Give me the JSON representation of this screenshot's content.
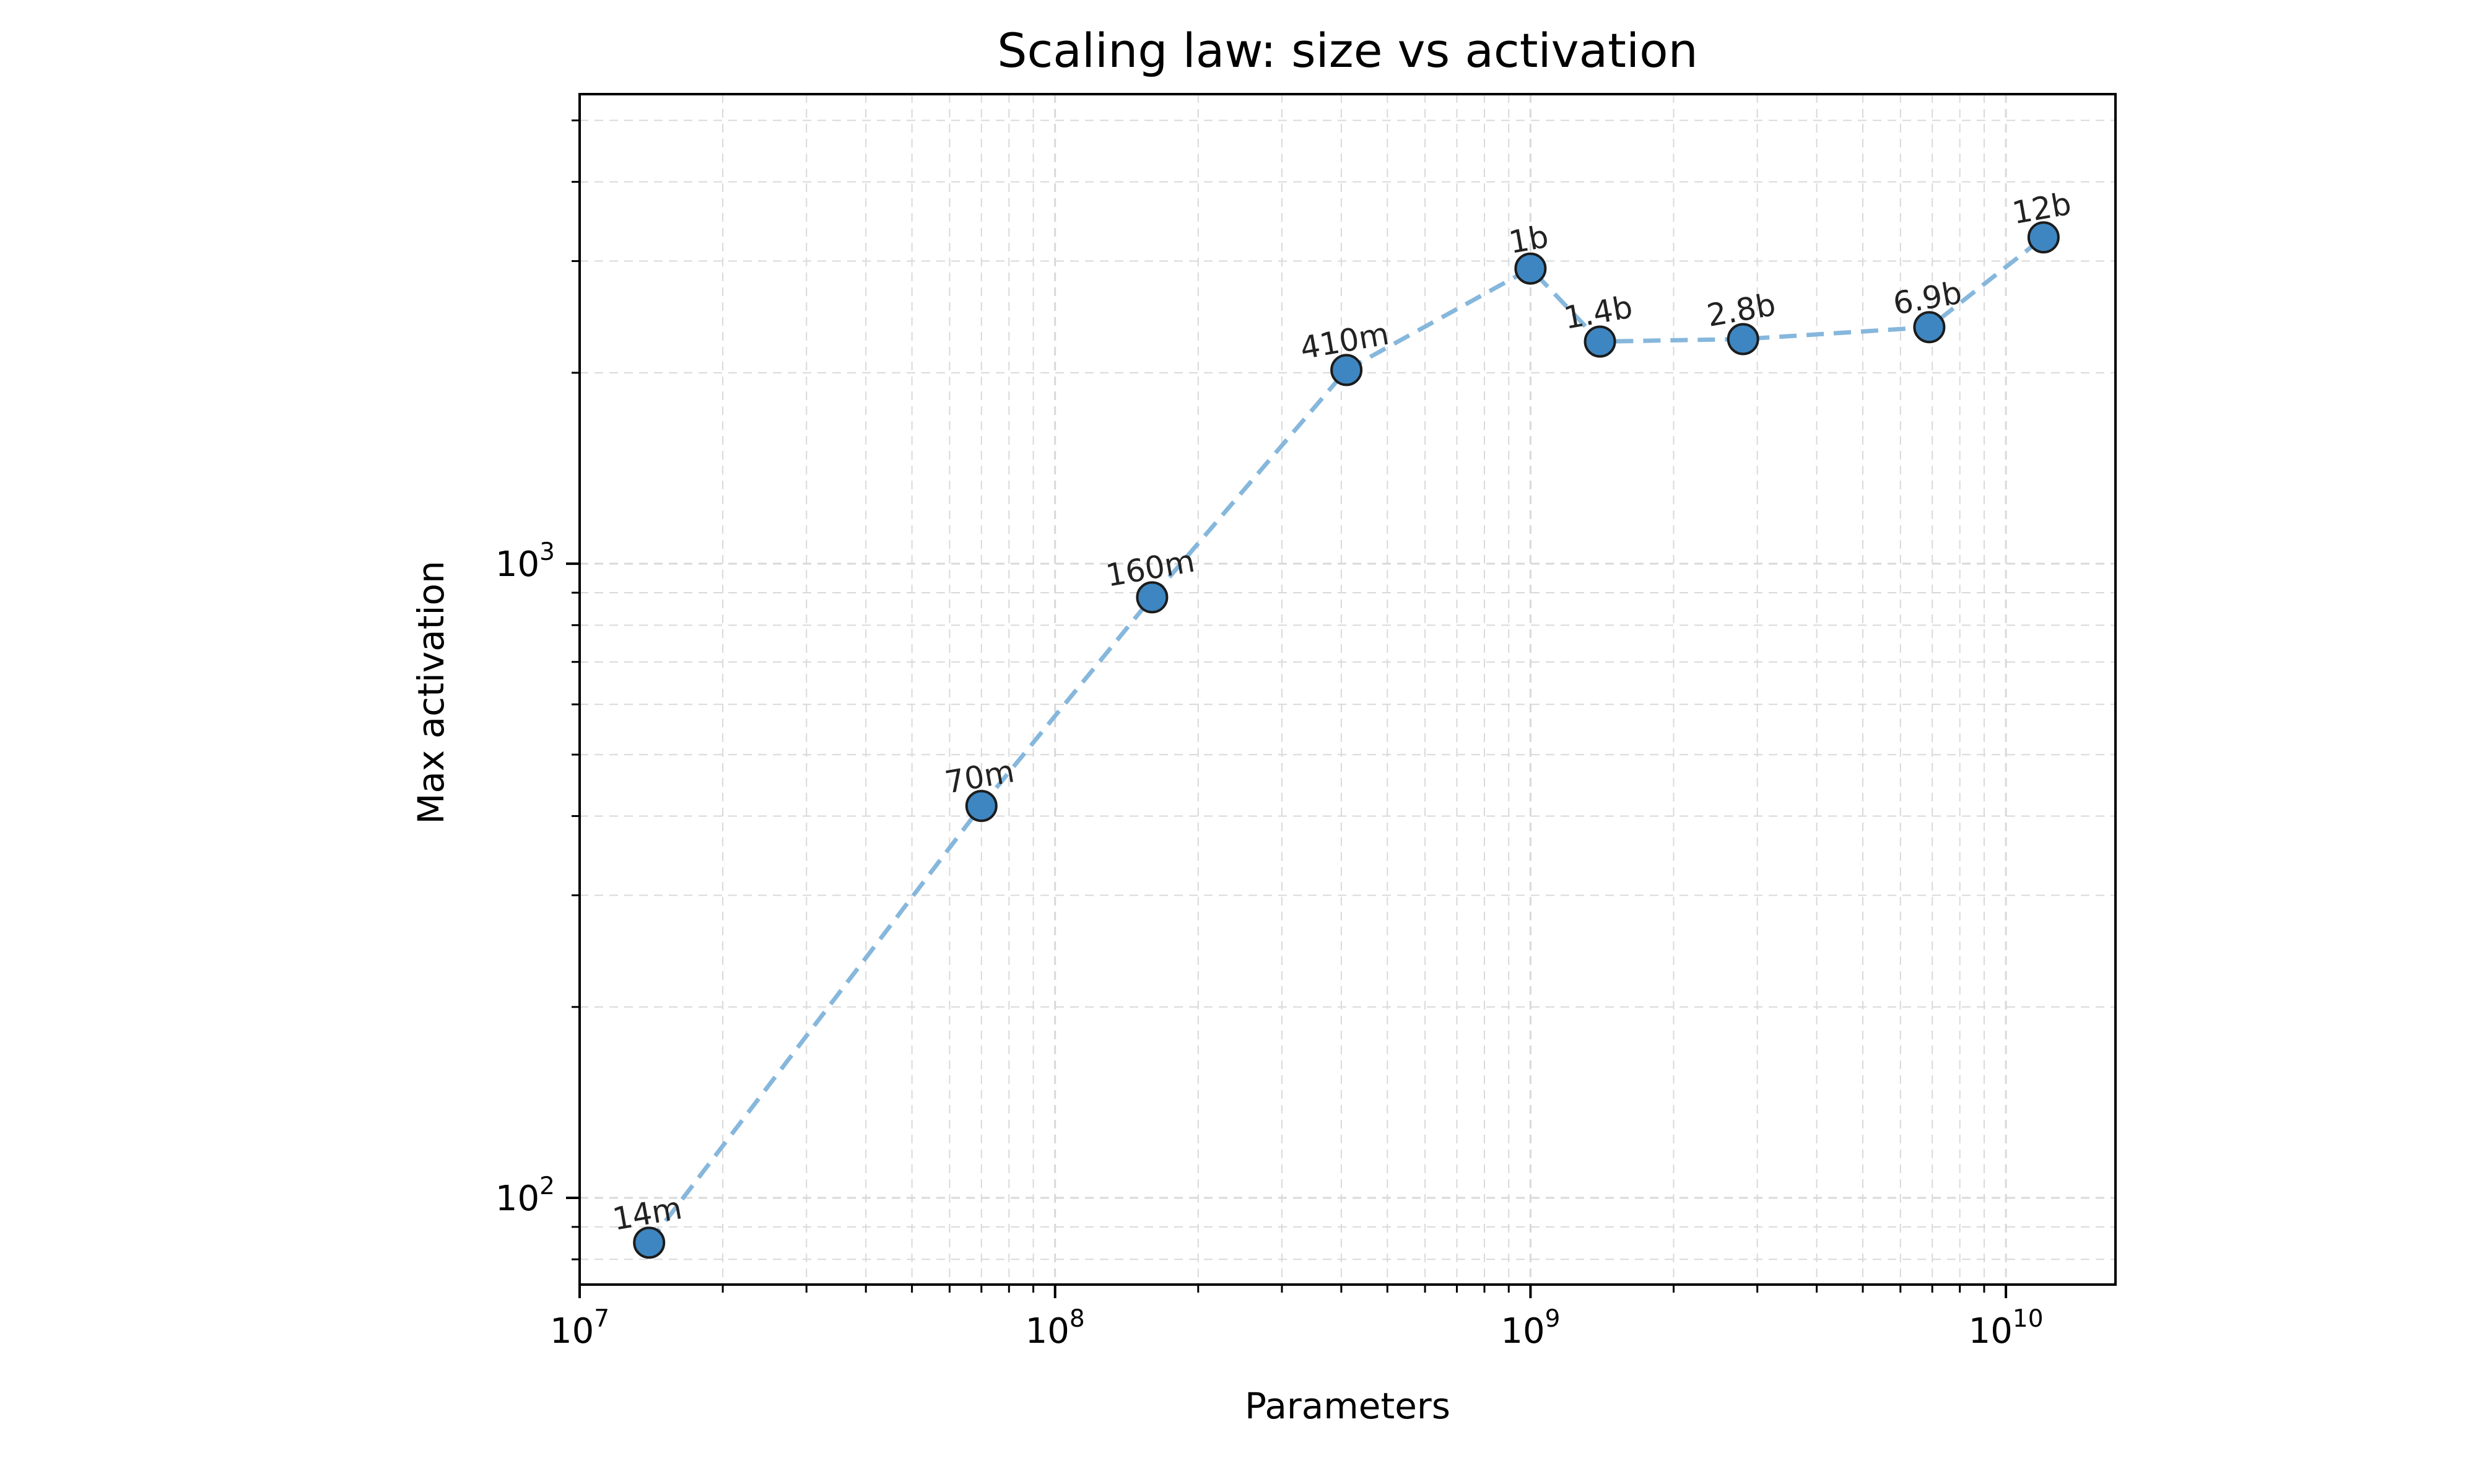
{
  "chart_data": {
    "type": "scatter",
    "title": "Scaling law: size vs activation",
    "xlabel": "Parameters",
    "ylabel": "Max activation",
    "xscale": "log",
    "yscale": "log",
    "xlim": [
      10000000,
      17000000000
    ],
    "ylim": [
      73,
      5500
    ],
    "grid": true,
    "grid_style": "dashed",
    "line_style": "dashed",
    "x_ticks": [
      {
        "base": "10",
        "exp": "7"
      },
      {
        "base": "10",
        "exp": "8"
      },
      {
        "base": "10",
        "exp": "9"
      },
      {
        "base": "10",
        "exp": "10"
      }
    ],
    "y_ticks": [
      {
        "base": "10",
        "exp": "2"
      },
      {
        "base": "10",
        "exp": "3"
      }
    ],
    "points": [
      {
        "label": "14m",
        "x": 14000000,
        "y": 85
      },
      {
        "label": "70m",
        "x": 70000000,
        "y": 415
      },
      {
        "label": "160m",
        "x": 160000000,
        "y": 885
      },
      {
        "label": "410m",
        "x": 410000000,
        "y": 2020
      },
      {
        "label": "1b",
        "x": 1000000000,
        "y": 2920
      },
      {
        "label": "1.4b",
        "x": 1400000000,
        "y": 2240
      },
      {
        "label": "2.8b",
        "x": 2800000000,
        "y": 2260
      },
      {
        "label": "6.9b",
        "x": 6900000000,
        "y": 2360
      },
      {
        "label": "12b",
        "x": 12000000000,
        "y": 3270
      }
    ],
    "colors": {
      "marker_fill": "#3d86c1",
      "marker_edge": "#1c1c1c",
      "line": "#86b7dc",
      "grid": "#d9d9d9"
    }
  }
}
